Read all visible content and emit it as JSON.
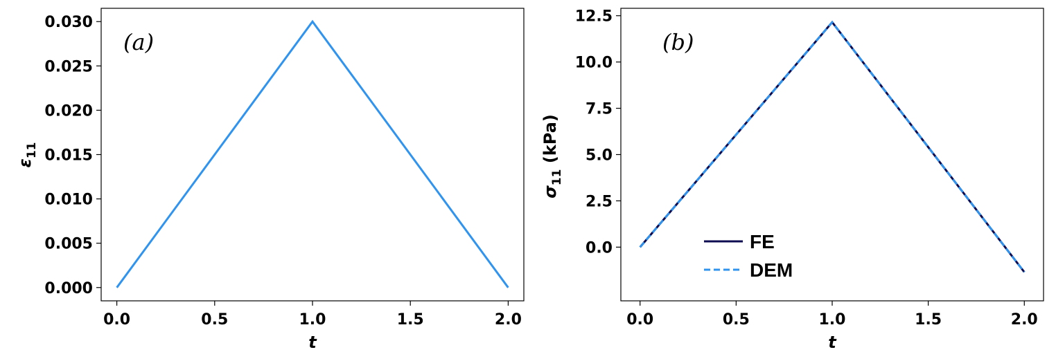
{
  "colors": {
    "fe": "#0d0b52",
    "dem": "#2f93f0",
    "strain": "#2f93f0"
  },
  "chart_data": [
    {
      "type": "line",
      "panel_label": "(a)",
      "xlabel": "t",
      "ylabel": "ε11",
      "ylabel_main": "ε",
      "ylabel_sub": "11",
      "ylabel_suffix": "",
      "xlim": [
        -0.08,
        2.08
      ],
      "ylim": [
        -0.0015,
        0.0315
      ],
      "xticks": [
        0.0,
        0.5,
        1.0,
        1.5,
        2.0
      ],
      "xtick_labels": [
        "0.0",
        "0.5",
        "1.0",
        "1.5",
        "2.0"
      ],
      "yticks": [
        0.0,
        0.005,
        0.01,
        0.015,
        0.02,
        0.025,
        0.03
      ],
      "ytick_labels": [
        "0.000",
        "0.005",
        "0.010",
        "0.015",
        "0.020",
        "0.025",
        "0.030"
      ],
      "grid": false,
      "series": [
        {
          "x": [
            0.0,
            1.0,
            2.0
          ],
          "y": [
            0.0,
            0.03,
            0.0
          ],
          "color": "#2f93f0",
          "dash": false
        }
      ]
    },
    {
      "type": "line",
      "panel_label": "(b)",
      "xlabel": "t",
      "ylabel": "σ11 (kPa)",
      "ylabel_main": "σ",
      "ylabel_sub": "11",
      "ylabel_suffix": " (kPa)",
      "xlim": [
        -0.1,
        2.1
      ],
      "ylim": [
        -2.9,
        12.9
      ],
      "xticks": [
        0.0,
        0.5,
        1.0,
        1.5,
        2.0
      ],
      "xtick_labels": [
        "0.0",
        "0.5",
        "1.0",
        "1.5",
        "2.0"
      ],
      "yticks": [
        0.0,
        2.5,
        5.0,
        7.5,
        10.0,
        12.5
      ],
      "ytick_labels": [
        "0.0",
        "2.5",
        "5.0",
        "7.5",
        "10.0",
        "12.5"
      ],
      "grid": false,
      "legend_position": "lower-center",
      "series": [
        {
          "name": "FE",
          "x": [
            0.0,
            1.0,
            2.0
          ],
          "y": [
            0.0,
            12.15,
            -1.35
          ],
          "color": "#0d0b52",
          "dash": false
        },
        {
          "name": "DEM",
          "x": [
            0.0,
            1.0,
            2.0
          ],
          "y": [
            0.0,
            12.15,
            -1.35
          ],
          "color": "#2f93f0",
          "dash": true
        }
      ]
    }
  ]
}
